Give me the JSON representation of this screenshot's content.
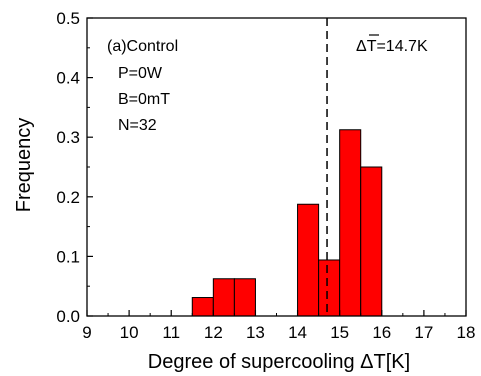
{
  "chart_data": {
    "type": "bar",
    "xlabel": "Degree of supercooling  ΔT[K]",
    "ylabel": "Frequency",
    "xlim": [
      9,
      18
    ],
    "ylim": [
      0.0,
      0.5
    ],
    "x_ticks": [
      "9",
      "10",
      "11",
      "12",
      "13",
      "14",
      "15",
      "16",
      "17",
      "18"
    ],
    "y_ticks": [
      "0.0",
      "0.1",
      "0.2",
      "0.3",
      "0.4",
      "0.5"
    ],
    "bin_width": 0.5,
    "bins": [
      {
        "x": 11.75,
        "value": 0.031
      },
      {
        "x": 12.25,
        "value": 0.0625
      },
      {
        "x": 12.75,
        "value": 0.0625
      },
      {
        "x": 14.25,
        "value": 0.1875
      },
      {
        "x": 14.75,
        "value": 0.094
      },
      {
        "x": 15.25,
        "value": 0.3125
      },
      {
        "x": 15.75,
        "value": 0.25
      }
    ],
    "bar_color": "#ff0000",
    "mean_line": {
      "x": 14.7,
      "label": "ΔT=14.7K",
      "style": "dashed"
    },
    "annotations": [
      "(a)Control",
      "P=0W",
      "B=0mT",
      "N=32"
    ]
  }
}
